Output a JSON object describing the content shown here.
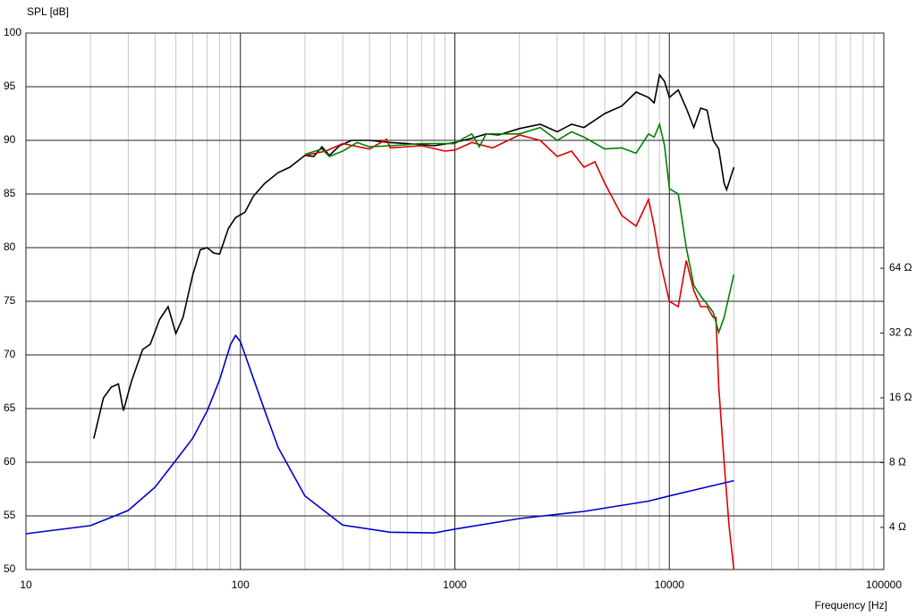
{
  "chart_data": {
    "type": "line",
    "y_label": "SPL [dB]",
    "x_label": "Frequency [Hz]",
    "xscale": "log",
    "y2scale": "log",
    "xlim": [
      10,
      100000
    ],
    "xticks": [
      10,
      100,
      1000,
      10000,
      100000
    ],
    "ylim": [
      50,
      100
    ],
    "yticks": [
      50,
      55,
      60,
      65,
      70,
      75,
      80,
      85,
      90,
      95,
      100
    ],
    "y2lim": [
      2.55,
      792
    ],
    "y2ticks": [
      {
        "value": 4,
        "label": "4 Ω"
      },
      {
        "value": 8,
        "label": "8 Ω"
      },
      {
        "value": 16,
        "label": "16 Ω"
      },
      {
        "value": 32,
        "label": "32 Ω"
      },
      {
        "value": 64,
        "label": "64 Ω"
      }
    ],
    "grid": true,
    "minor_grid": true,
    "series": [
      {
        "color": "#000000",
        "x": [
          20.7,
          23,
          25,
          27,
          28.5,
          31,
          35,
          38,
          42,
          46,
          50,
          54,
          60,
          65,
          70,
          75,
          80,
          88,
          95,
          105,
          115,
          130,
          150,
          170,
          200,
          220,
          240,
          260,
          290,
          330,
          400,
          500,
          600,
          800,
          1000,
          1200,
          1400,
          1600,
          2000,
          2500,
          3000,
          3500,
          4000,
          5000,
          6000,
          7000,
          8000,
          8500,
          9000,
          9500,
          10000,
          11000,
          12000,
          13000,
          14000,
          15000,
          16000,
          17000,
          18000,
          18500,
          20000
        ],
        "values": [
          62.2,
          66,
          67,
          67.3,
          64.8,
          67.5,
          70.5,
          71,
          73.3,
          74.5,
          72,
          73.5,
          77.5,
          79.8,
          80,
          79.5,
          79.4,
          81.8,
          82.8,
          83.3,
          84.8,
          86,
          87,
          87.5,
          88.6,
          88.5,
          89.4,
          88.6,
          89.5,
          90,
          90,
          89.8,
          89.7,
          89.5,
          89.8,
          90.2,
          90.6,
          90.5,
          91.1,
          91.5,
          90.8,
          91.5,
          91.2,
          92.5,
          93.2,
          94.5,
          94,
          93.5,
          96.1,
          95.5,
          94,
          94.7,
          93,
          91.2,
          93,
          92.8,
          90,
          89.2,
          86,
          85.4,
          87.5
        ]
      },
      {
        "color": "#dd0000",
        "x": [
          200,
          250,
          300,
          400,
          480,
          500,
          700,
          900,
          1000,
          1200,
          1500,
          2000,
          2500,
          3000,
          3500,
          4000,
          4500,
          5000,
          6000,
          7000,
          8000,
          8500,
          9000,
          10000,
          11000,
          12000,
          13000,
          14000,
          15000,
          16000,
          16500,
          17000,
          18000,
          19000,
          20000
        ],
        "values": [
          88.6,
          89,
          89.7,
          89.2,
          90.1,
          89.3,
          89.5,
          89,
          89.1,
          89.8,
          89.3,
          90.5,
          90,
          88.5,
          89,
          87.5,
          88,
          86,
          83,
          82,
          84.5,
          82,
          79,
          75,
          74.5,
          78.8,
          76,
          74.5,
          74.5,
          73.5,
          73.5,
          67,
          60,
          54,
          50
        ]
      },
      {
        "color": "#008000",
        "x": [
          200,
          240,
          260,
          300,
          350,
          400,
          500,
          700,
          1000,
          1100,
          1200,
          1300,
          1400,
          2000,
          2500,
          3000,
          3500,
          4000,
          5000,
          6000,
          7000,
          8000,
          8500,
          9000,
          9500,
          10000,
          11000,
          12000,
          13000,
          14000,
          16000,
          17000,
          18000,
          20000
        ],
        "values": [
          88.7,
          89.2,
          88.5,
          89,
          89.8,
          89.4,
          89.5,
          89.7,
          89.7,
          90.2,
          90.6,
          89.4,
          90.6,
          90.6,
          91.2,
          90,
          90.8,
          90.3,
          89.2,
          89.3,
          88.8,
          90.6,
          90.3,
          91.5,
          89.5,
          85.5,
          85,
          80,
          76.5,
          75.5,
          74,
          72.1,
          73.5,
          77.5
        ]
      },
      {
        "color": "#0000cc",
        "axis": "y2",
        "x": [
          10,
          20,
          30,
          40,
          50,
          60,
          70,
          80,
          90,
          95,
          100,
          110,
          130,
          150,
          200,
          300,
          500,
          800,
          1000,
          2000,
          4000,
          8000,
          10000,
          20000
        ],
        "values": [
          3.74,
          4.08,
          4.8,
          6.15,
          8.2,
          10.4,
          13.9,
          19.4,
          28.4,
          31.2,
          29.2,
          22.3,
          13.9,
          9.4,
          5.6,
          4.1,
          3.8,
          3.77,
          3.93,
          4.4,
          4.75,
          5.3,
          5.6,
          6.6
        ]
      }
    ]
  }
}
